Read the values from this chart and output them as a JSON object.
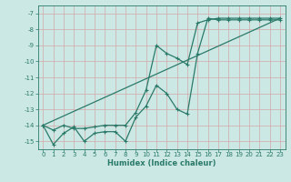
{
  "xlabel": "Humidex (Indice chaleur)",
  "xlim": [
    -0.5,
    23.5
  ],
  "ylim": [
    -15.5,
    -6.5
  ],
  "yticks": [
    -15,
    -14,
    -13,
    -12,
    -11,
    -10,
    -9,
    -8,
    -7
  ],
  "xticks": [
    0,
    1,
    2,
    3,
    4,
    5,
    6,
    7,
    8,
    9,
    10,
    11,
    12,
    13,
    14,
    15,
    16,
    17,
    18,
    19,
    20,
    21,
    22,
    23
  ],
  "bg_color": "#cce8e4",
  "grid_color": "#b0d8d4",
  "line_color": "#2a7a6a",
  "line1_x": [
    0,
    1,
    2,
    3,
    4,
    5,
    6,
    7,
    8,
    9,
    10,
    11,
    12,
    13,
    14,
    15,
    16,
    17,
    18,
    19,
    20,
    21,
    22,
    23
  ],
  "line1_y": [
    -14.0,
    -15.2,
    -14.5,
    -14.1,
    -15.0,
    -14.5,
    -14.4,
    -14.4,
    -15.0,
    -13.5,
    -12.8,
    -11.5,
    -12.0,
    -13.0,
    -13.3,
    -9.5,
    -7.3,
    -7.4,
    -7.4,
    -7.4,
    -7.4,
    -7.4,
    -7.4,
    -7.4
  ],
  "line2_x": [
    0,
    1,
    2,
    3,
    4,
    5,
    6,
    7,
    8,
    9,
    10,
    11,
    12,
    13,
    14,
    15,
    16,
    17,
    18,
    19,
    20,
    21,
    22,
    23
  ],
  "line2_y": [
    -14.0,
    -14.3,
    -14.0,
    -14.2,
    -14.2,
    -14.1,
    -14.0,
    -14.0,
    -14.0,
    -13.2,
    -11.8,
    -9.0,
    -9.5,
    -9.8,
    -10.2,
    -7.6,
    -7.4,
    -7.3,
    -7.3,
    -7.3,
    -7.3,
    -7.3,
    -7.3,
    -7.3
  ],
  "line3_x": [
    0,
    23
  ],
  "line3_y": [
    -14.0,
    -7.3
  ]
}
